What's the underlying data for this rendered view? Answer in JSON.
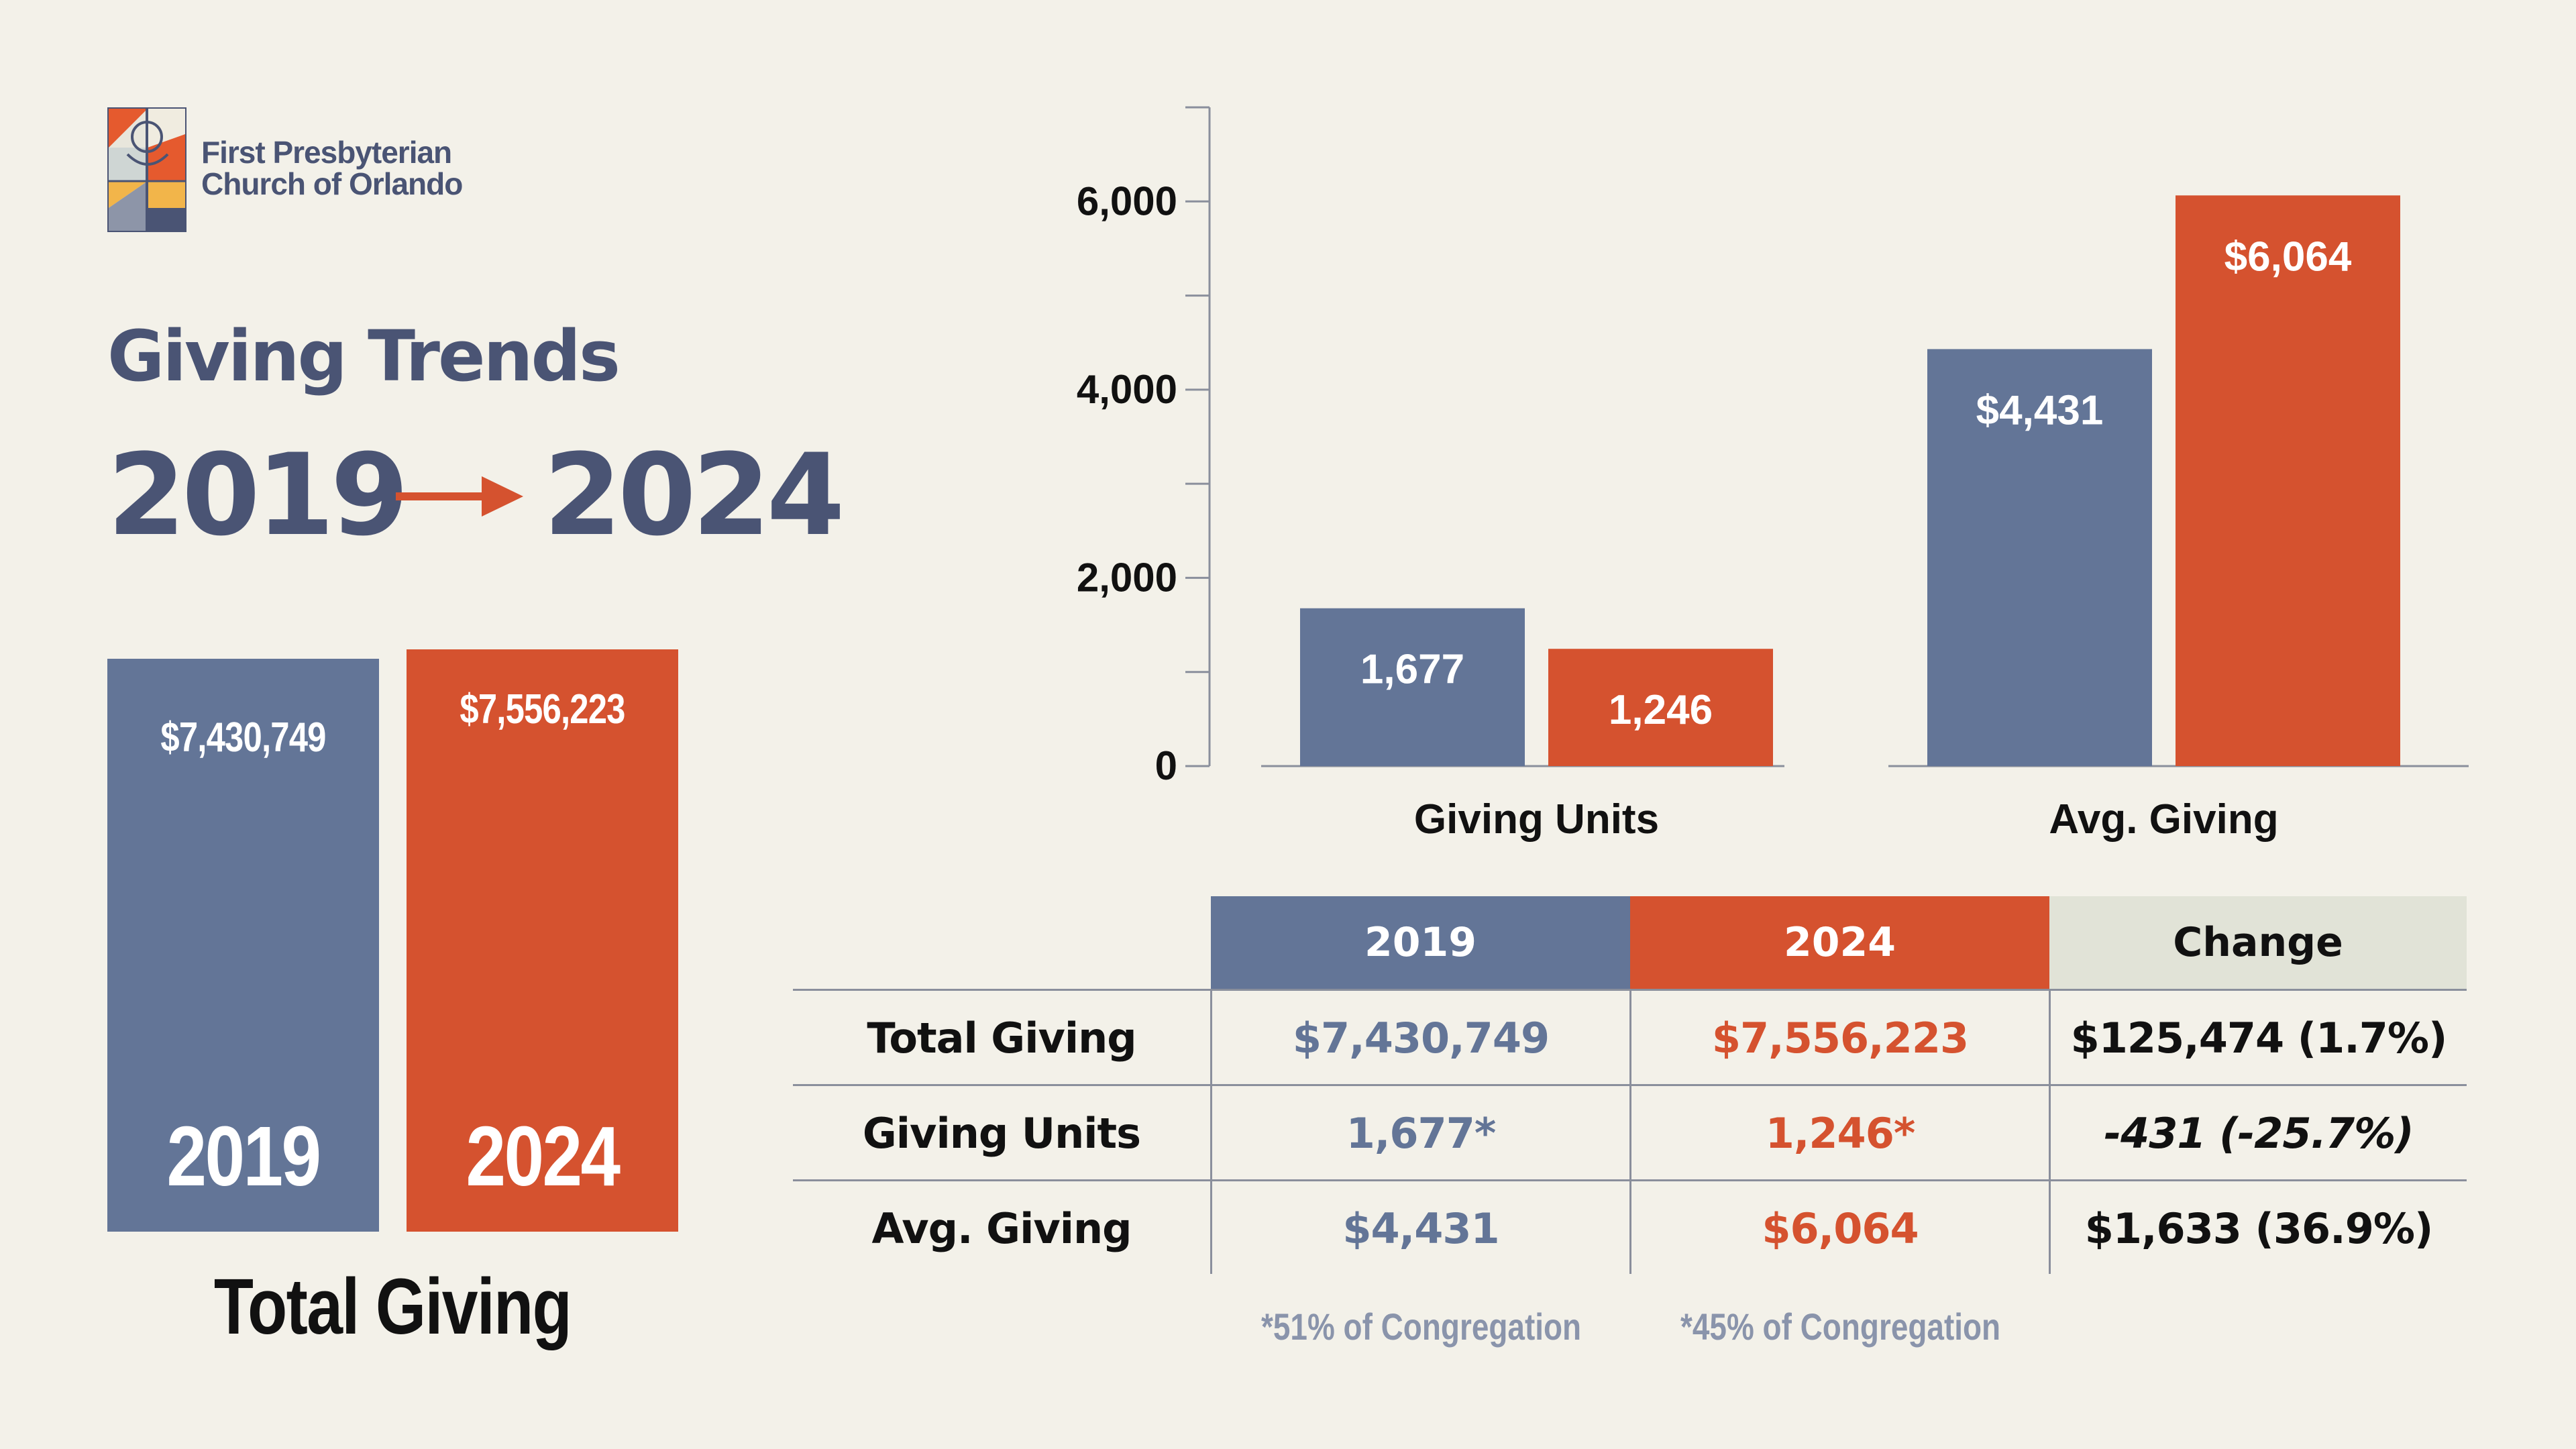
{
  "organization": {
    "name_line1": "First Presbyterian",
    "name_line2": "Church of Orlando",
    "logo_icon": "stained-glass-cross-logo-icon"
  },
  "header": {
    "title": "Giving Trends",
    "year_start": "2019",
    "year_end": "2024",
    "arrow_icon": "arrow-right-icon"
  },
  "colors": {
    "year_2019": "#637597",
    "year_2024": "#d5522f",
    "heading": "#4a5474",
    "change_header_bg": "#e1e3d7",
    "background": "#f3f1e9"
  },
  "total_giving": {
    "label": "Total Giving",
    "bars": [
      {
        "year": "2019",
        "value": 7430749,
        "value_label": "$7,430,749"
      },
      {
        "year": "2024",
        "value": 7556223,
        "value_label": "$7,556,223"
      }
    ]
  },
  "chart_data": {
    "type": "bar",
    "categories": [
      "Giving Units",
      "Avg. Giving"
    ],
    "series": [
      {
        "values": [
          1677,
          4431
        ],
        "labels": [
          "1,677",
          "$4,431"
        ],
        "color": "#637597"
      },
      {
        "values": [
          1246,
          6064
        ],
        "labels": [
          "1,246",
          "$6,064"
        ],
        "color": "#d5522f"
      }
    ],
    "yticks": [
      0,
      2000,
      4000,
      6000
    ],
    "ytick_labels": [
      "0",
      "2,000",
      "4,000",
      "6,000"
    ],
    "ylim": [
      0,
      7000
    ],
    "grid": false,
    "legend": "none"
  },
  "table": {
    "headers": [
      "2019",
      "2024",
      "Change"
    ],
    "rows": [
      {
        "label": "Total Giving",
        "v2019": "$7,430,749",
        "v2024": "$7,556,223",
        "change": "$125,474 (1.7%)"
      },
      {
        "label": "Giving Units",
        "v2019": "1,677*",
        "v2024": "1,246*",
        "change": "-431 (-25.7%)"
      },
      {
        "label": "Avg. Giving",
        "v2019": "$4,431",
        "v2024": "$6,064",
        "change": "$1,633 (36.9%)"
      }
    ],
    "footnotes": [
      "*51% of Congregation",
      "*45% of Congregation"
    ]
  }
}
